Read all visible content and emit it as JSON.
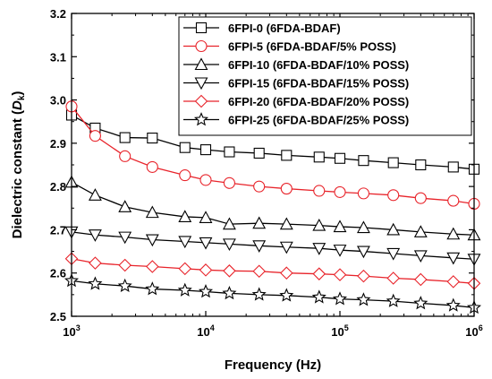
{
  "chart_data": {
    "type": "line",
    "xlabel": "Frequency (Hz)",
    "ylabel_prefix": "Dielectric constant (",
    "ylabel_symbol": "D",
    "ylabel_sub": "k",
    "ylabel_suffix": ")",
    "xscale": "log",
    "xlim": [
      1000,
      1000000
    ],
    "ylim": [
      2.5,
      3.2
    ],
    "x_ticks": [
      {
        "value": 1000,
        "base": "10",
        "exp": "3"
      },
      {
        "value": 10000,
        "base": "10",
        "exp": "4"
      },
      {
        "value": 100000,
        "base": "10",
        "exp": "5"
      },
      {
        "value": 1000000,
        "base": "10",
        "exp": "6"
      }
    ],
    "y_ticks": [
      "2.5",
      "2.6",
      "2.7",
      "2.8",
      "2.9",
      "3.0",
      "3.1",
      "3.2"
    ],
    "legend_position": "top-right",
    "grid": false,
    "x": [
      1000,
      1500,
      2500,
      4000,
      7000,
      10000,
      15000,
      25000,
      40000,
      70000,
      100000,
      150000,
      250000,
      400000,
      700000,
      1000000
    ],
    "series": [
      {
        "name": "6FPI-0 (6FDA-BDAF)",
        "marker": "square",
        "color": "#000000",
        "values": [
          2.965,
          2.935,
          2.913,
          2.912,
          2.89,
          2.885,
          2.88,
          2.877,
          2.872,
          2.868,
          2.865,
          2.86,
          2.855,
          2.85,
          2.845,
          2.84
        ]
      },
      {
        "name": "6FPI-5 (6FDA-BDAF/5% POSS)",
        "marker": "circle",
        "color": "#e8232a",
        "values": [
          2.985,
          2.917,
          2.87,
          2.845,
          2.826,
          2.815,
          2.808,
          2.8,
          2.795,
          2.79,
          2.787,
          2.784,
          2.78,
          2.773,
          2.767,
          2.76
        ]
      },
      {
        "name": "6FPI-10 (6FDA-BDAF/10% POSS)",
        "marker": "triangle-up",
        "color": "#000000",
        "values": [
          2.81,
          2.78,
          2.753,
          2.74,
          2.73,
          2.728,
          2.713,
          2.715,
          2.713,
          2.71,
          2.707,
          2.705,
          2.7,
          2.695,
          2.69,
          2.688
        ]
      },
      {
        "name": "6FPI-15 (6FDA-BDAF/15% POSS)",
        "marker": "triangle-down",
        "color": "#000000",
        "values": [
          2.695,
          2.688,
          2.683,
          2.677,
          2.673,
          2.67,
          2.667,
          2.663,
          2.66,
          2.657,
          2.653,
          2.65,
          2.645,
          2.64,
          2.635,
          2.632
        ]
      },
      {
        "name": "6FPI-20 (6FDA-BDAF/20% POSS)",
        "marker": "diamond",
        "color": "#e8232a",
        "values": [
          2.633,
          2.623,
          2.618,
          2.615,
          2.61,
          2.607,
          2.605,
          2.604,
          2.6,
          2.598,
          2.596,
          2.593,
          2.588,
          2.585,
          2.58,
          2.576
        ]
      },
      {
        "name": "6FPI-25 (6FDA-BDAF/25% POSS)",
        "marker": "star",
        "color": "#000000",
        "values": [
          2.582,
          2.575,
          2.57,
          2.563,
          2.56,
          2.557,
          2.553,
          2.55,
          2.548,
          2.544,
          2.54,
          2.538,
          2.535,
          2.53,
          2.525,
          2.52
        ]
      }
    ]
  }
}
